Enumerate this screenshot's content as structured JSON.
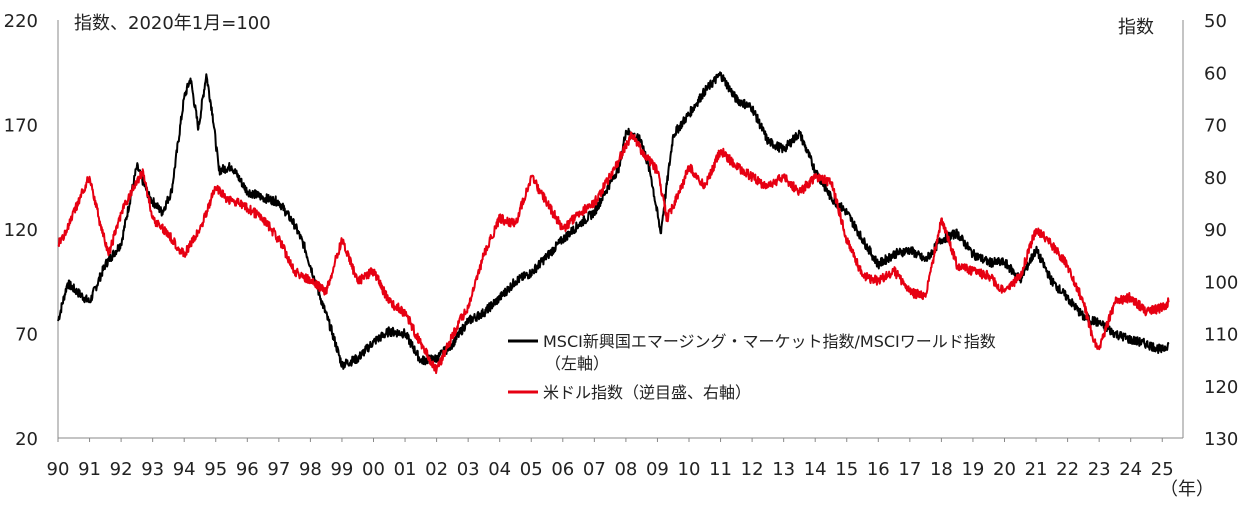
{
  "chart_data": {
    "type": "line",
    "left_axis_label": "指数、2020年1月=100",
    "right_axis_label": "指数",
    "x_unit": "（年）",
    "x_ticks": [
      "90",
      "91",
      "92",
      "93",
      "94",
      "95",
      "96",
      "97",
      "98",
      "99",
      "00",
      "01",
      "02",
      "03",
      "04",
      "05",
      "06",
      "07",
      "08",
      "09",
      "10",
      "11",
      "12",
      "13",
      "14",
      "15",
      "16",
      "17",
      "18",
      "19",
      "20",
      "21",
      "22",
      "23",
      "24",
      "25"
    ],
    "y_left": {
      "min": 20,
      "max": 220,
      "ticks": [
        "220",
        "170",
        "120",
        "70",
        "20"
      ]
    },
    "y_right": {
      "min": 50,
      "max": 130,
      "inverted": true,
      "ticks": [
        "50",
        "60",
        "70",
        "80",
        "90",
        "100",
        "110",
        "120",
        "130"
      ]
    },
    "series": [
      {
        "name": "MSCI新興国エマージング・マーケット指数/MSCIワールド指数",
        "name_line2": "（左軸）",
        "axis": "left",
        "color": "#000000",
        "x": [
          1990.0,
          1990.3,
          1990.6,
          1991.0,
          1991.5,
          1992.0,
          1992.5,
          1992.9,
          1993.3,
          1993.6,
          1994.0,
          1994.2,
          1994.45,
          1994.7,
          1994.9,
          1995.1,
          1995.5,
          1996.0,
          1996.5,
          1997.0,
          1997.5,
          1997.8,
          1998.3,
          1998.7,
          1999.0,
          1999.5,
          2000.0,
          2000.5,
          2001.0,
          2001.5,
          2002.0,
          2002.5,
          2003.0,
          2003.5,
          2004.0,
          2004.5,
          2005.0,
          2005.5,
          2006.0,
          2006.5,
          2007.0,
          2007.5,
          2007.8,
          2008.0,
          2008.5,
          2008.8,
          2009.1,
          2009.5,
          2010.0,
          2010.5,
          2011.0,
          2011.5,
          2012.0,
          2012.5,
          2013.0,
          2013.5,
          2014.0,
          2014.5,
          2015.0,
          2015.5,
          2016.0,
          2016.5,
          2017.0,
          2017.5,
          2018.0,
          2018.5,
          2019.0,
          2019.5,
          2020.0,
          2020.5,
          2021.0,
          2021.5,
          2022.0,
          2022.5,
          2023.0,
          2023.5,
          2024.0,
          2024.5,
          2025.0,
          2025.2
        ],
        "values": [
          76,
          94,
          90,
          85,
          103,
          113,
          150,
          135,
          128,
          138,
          183,
          192,
          168,
          194,
          175,
          148,
          150,
          138,
          135,
          133,
          122,
          112,
          88,
          70,
          55,
          58,
          66,
          71,
          70,
          57,
          58,
          65,
          76,
          80,
          87,
          95,
          99,
          107,
          115,
          122,
          128,
          142,
          150,
          167,
          162,
          145,
          118,
          165,
          175,
          186,
          194,
          182,
          178,
          162,
          158,
          166,
          148,
          135,
          128,
          115,
          103,
          108,
          110,
          105,
          115,
          118,
          108,
          104,
          104,
          96,
          110,
          95,
          87,
          78,
          75,
          70,
          67,
          65,
          62,
          65
        ]
      },
      {
        "name": "米ドル指数（逆目盛、右軸）",
        "axis": "right",
        "color": "#e60012",
        "x": [
          1990.0,
          1990.3,
          1990.7,
          1991.0,
          1991.3,
          1991.6,
          1992.0,
          1992.4,
          1992.7,
          1993.0,
          1993.5,
          1994.0,
          1994.5,
          1995.0,
          1995.3,
          1995.7,
          1996.0,
          1996.5,
          1997.0,
          1997.5,
          1998.0,
          1998.5,
          1999.0,
          1999.5,
          2000.0,
          2000.5,
          2001.0,
          2001.5,
          2002.0,
          2002.3,
          2002.7,
          2003.0,
          2003.5,
          2004.0,
          2004.5,
          2005.0,
          2005.5,
          2006.0,
          2006.5,
          2007.0,
          2007.5,
          2008.0,
          2008.2,
          2008.5,
          2009.0,
          2009.3,
          2009.7,
          2010.0,
          2010.5,
          2011.0,
          2011.5,
          2012.0,
          2012.5,
          2013.0,
          2013.5,
          2014.0,
          2014.5,
          2015.0,
          2015.5,
          2016.0,
          2016.5,
          2017.0,
          2017.5,
          2018.0,
          2018.5,
          2019.0,
          2019.5,
          2020.0,
          2020.5,
          2021.0,
          2021.5,
          2022.0,
          2022.5,
          2022.8,
          2023.0,
          2023.5,
          2024.0,
          2024.5,
          2025.0,
          2025.2
        ],
        "values": [
          93,
          90,
          84,
          80,
          88,
          95,
          87,
          82,
          79,
          88,
          91,
          95,
          90,
          82,
          84,
          85,
          86,
          88,
          92,
          98,
          100,
          102,
          92,
          100,
          98,
          104,
          106,
          112,
          117,
          113,
          108,
          105,
          95,
          88,
          89,
          80,
          85,
          90,
          87,
          85,
          80,
          74,
          72,
          75,
          79,
          88,
          83,
          78,
          82,
          75,
          78,
          80,
          82,
          80,
          83,
          80,
          81,
          92,
          99,
          100,
          98,
          102,
          103,
          88,
          97,
          98,
          99,
          102,
          99,
          90,
          93,
          97,
          104,
          111,
          113,
          104,
          103,
          106,
          105,
          104
        ]
      }
    ]
  }
}
